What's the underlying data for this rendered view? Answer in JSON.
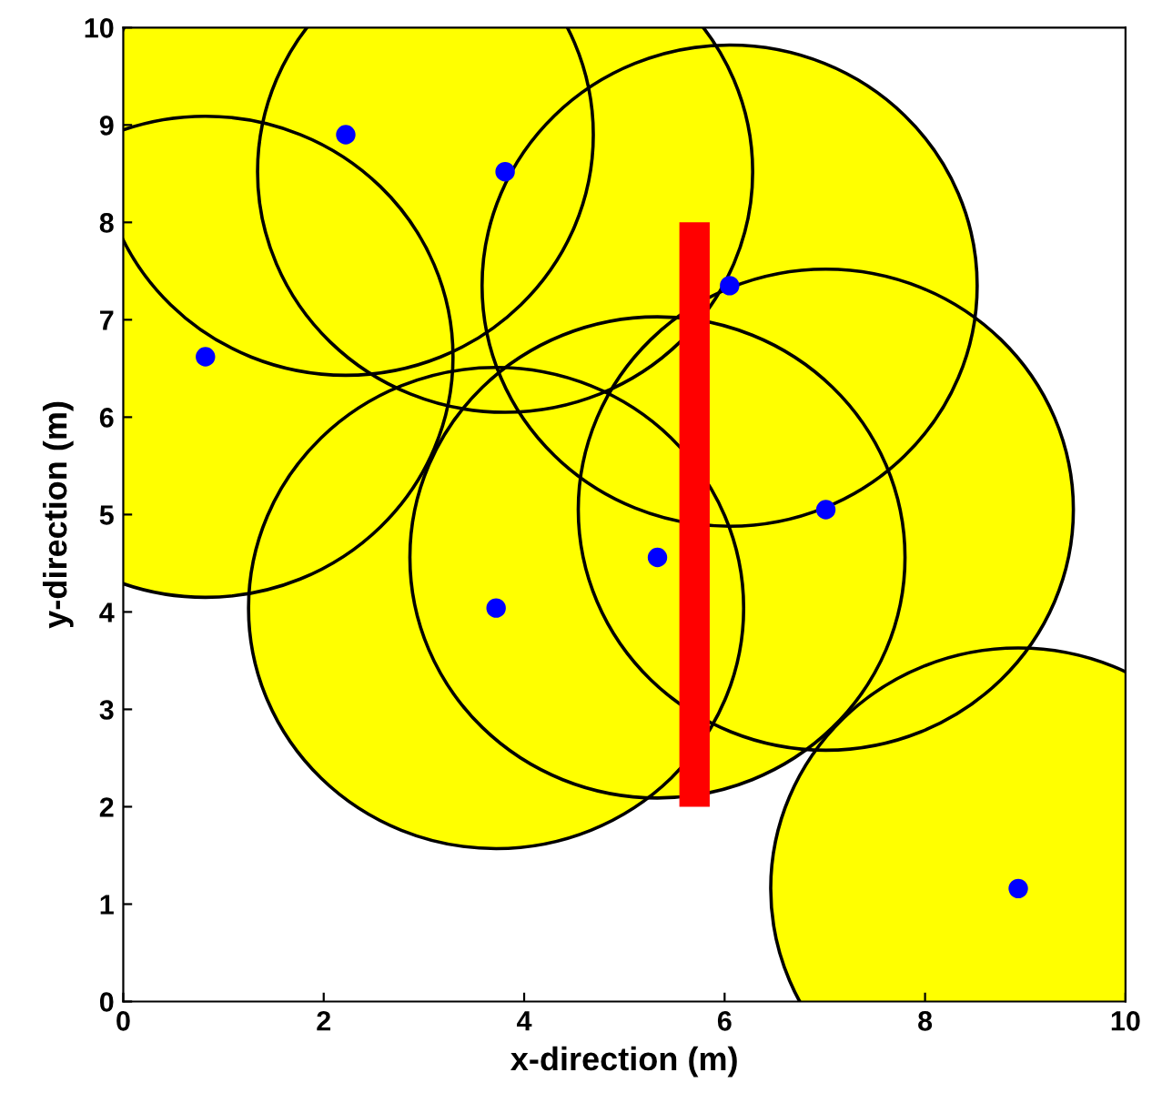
{
  "chart_data": {
    "type": "bubble",
    "xlabel": "x-direction (m)",
    "ylabel": "y-direction (m)",
    "xlim": [
      0,
      10
    ],
    "ylim": [
      0,
      10
    ],
    "xticks": [
      0,
      2,
      4,
      6,
      8,
      10
    ],
    "yticks": [
      0,
      1,
      2,
      3,
      4,
      5,
      6,
      7,
      8,
      9,
      10
    ],
    "grid": false,
    "x": [
      2.22,
      3.81,
      0.82,
      6.05,
      7.01,
      5.33,
      3.72,
      8.93
    ],
    "series": [
      {
        "color": "#ffff00",
        "values": [
          8.9,
          8.52,
          6.62,
          7.35,
          5.05,
          4.56,
          4.04,
          1.16
        ],
        "sizes": [
          1,
          1,
          1,
          1,
          1,
          1,
          1,
          1
        ]
      },
      {
        "type": "scatter",
        "color": "#0000ff",
        "marker": "circle",
        "values": [
          8.9,
          8.52,
          6.62,
          7.35,
          5.05,
          4.56,
          4.04,
          1.16
        ]
      },
      {
        "type": "line",
        "color": "#ff0000",
        "x": [
          5.7,
          5.7
        ],
        "values": [
          2,
          8
        ],
        "marker": "none",
        "line_style": "solid"
      }
    ]
  }
}
